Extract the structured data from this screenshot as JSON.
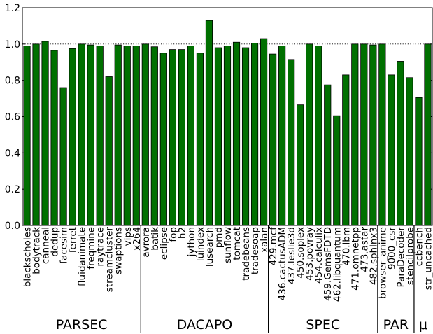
{
  "chart_data": {
    "type": "bar",
    "ylim": [
      0,
      1.2
    ],
    "yticks": [
      "0.0",
      "0.2",
      "0.4",
      "0.6",
      "0.8",
      "1.0",
      "1.2"
    ],
    "reference_line": 1.0,
    "grid": "horizontal dotted line at 1.0",
    "bar_color": "#007000",
    "categories": [
      "blackscholes",
      "bodytrack",
      "canneal",
      "dedup",
      "facesim",
      "ferret",
      "fluidanimate",
      "freqmine",
      "raytrace",
      "streamcluster",
      "swaptions",
      "vips",
      "x264",
      "avrora",
      "batik",
      "eclipse",
      "fop",
      "h2",
      "jython",
      "luindex",
      "lusearch",
      "pmd",
      "sunflow",
      "tomcat",
      "tradebeans",
      "tradesoap",
      "xalan",
      "429.mcf",
      "436.cactusADM",
      "437.leslie3d",
      "450.soplex",
      "453.povray",
      "454.calculix",
      "459.GemsFDTD",
      "462.libquantum",
      "470.lbm",
      "471.omnetpp",
      "473.astar",
      "482.sphinx3",
      "browser_anime",
      "9000_csr",
      "ParaDecoder",
      "stencilprobe",
      "ccbench",
      "str_uncached"
    ],
    "values": [
      0.99,
      1.0,
      1.015,
      0.965,
      0.76,
      0.975,
      1.0,
      0.995,
      0.99,
      0.82,
      0.995,
      0.99,
      0.99,
      1.0,
      0.985,
      0.95,
      0.97,
      0.97,
      0.99,
      0.95,
      1.13,
      0.98,
      0.99,
      1.01,
      0.98,
      1.005,
      1.03,
      0.945,
      0.99,
      0.915,
      0.665,
      1.0,
      0.99,
      0.775,
      0.605,
      0.83,
      1.0,
      1.0,
      0.995,
      1.0,
      0.83,
      0.905,
      0.815,
      0.705,
      1.0
    ],
    "groups": [
      {
        "label": "PARSEC",
        "count": 13
      },
      {
        "label": "DACAPO",
        "count": 14
      },
      {
        "label": "SPEC",
        "count": 12
      },
      {
        "label": "PAR",
        "count": 4
      },
      {
        "label": "μ",
        "count": 2
      }
    ]
  }
}
